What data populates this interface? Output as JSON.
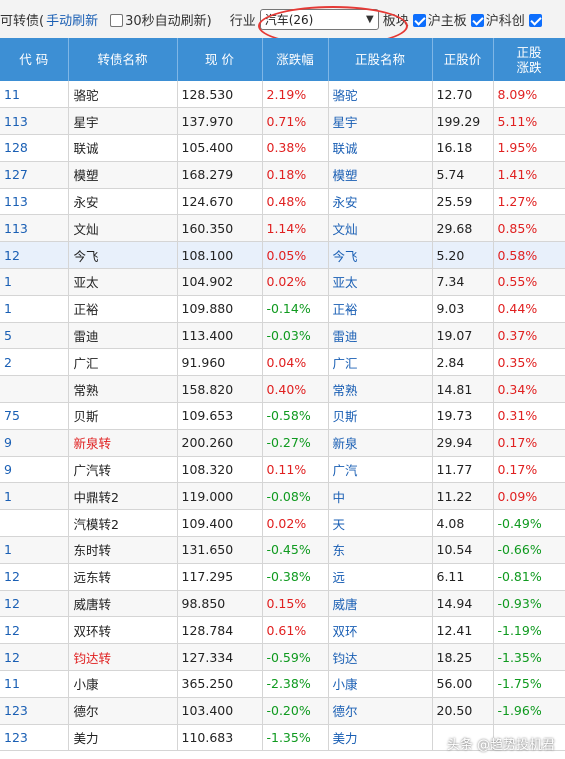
{
  "toolbar": {
    "title": "可转债(",
    "refresh_link": "手动刷新",
    "auto_refresh_label": "30秒自动刷新)",
    "industry_label": "行业",
    "industry_select": "汽车(26)",
    "board_label": "板块",
    "boards": [
      "沪主板",
      "沪科创",
      ""
    ]
  },
  "columns": [
    "代 码",
    "转债名称",
    "现 价",
    "涨跌幅",
    "正股名称",
    "正股价",
    "正股\n涨跌"
  ],
  "rows": [
    {
      "code": "11",
      "name": "骆驼",
      "price": "128.530",
      "chg": "2.19%",
      "stock": "骆驼",
      "sprice": "12.70",
      "schg": "8.09%"
    },
    {
      "code": "113",
      "name": "星宇",
      "price": "137.970",
      "chg": "0.71%",
      "stock": "星宇",
      "sprice": "199.29",
      "schg": "5.11%"
    },
    {
      "code": "128",
      "name": "联诚",
      "price": "105.400",
      "chg": "0.38%",
      "stock": "联诚",
      "sprice": "16.18",
      "schg": "1.95%"
    },
    {
      "code": "127",
      "name": "模塑",
      "price": "168.279",
      "chg": "0.18%",
      "stock": "模塑",
      "sprice": "5.74",
      "schg": "1.41%"
    },
    {
      "code": "113",
      "name": "永安",
      "price": "124.670",
      "chg": "0.48%",
      "stock": "永安",
      "sprice": "25.59",
      "schg": "1.27%"
    },
    {
      "code": "113",
      "name": "文灿",
      "price": "160.350",
      "chg": "1.14%",
      "stock": "文灿",
      "sprice": "29.68",
      "schg": "0.85%"
    },
    {
      "code": "12",
      "name": "今飞",
      "price": "108.100",
      "chg": "0.05%",
      "stock": "今飞",
      "sprice": "5.20",
      "schg": "0.58%"
    },
    {
      "code": "1",
      "name": "亚太",
      "price": "104.902",
      "chg": "0.02%",
      "stock": "亚太",
      "sprice": "7.34",
      "schg": "0.55%"
    },
    {
      "code": "1",
      "name": "正裕",
      "price": "109.880",
      "chg": "-0.14%",
      "stock": "正裕",
      "sprice": "9.03",
      "schg": "0.44%"
    },
    {
      "code": "5",
      "name": "雷迪",
      "price": "113.400",
      "chg": "-0.03%",
      "stock": "雷迪",
      "sprice": "19.07",
      "schg": "0.37%"
    },
    {
      "code": "2",
      "name": "广汇",
      "price": "91.960",
      "chg": "0.04%",
      "stock": "广汇",
      "sprice": "2.84",
      "schg": "0.35%"
    },
    {
      "code": "",
      "name": "常熟",
      "price": "158.820",
      "chg": "0.40%",
      "stock": "常熟",
      "sprice": "14.81",
      "schg": "0.34%"
    },
    {
      "code": "75",
      "name": "贝斯",
      "price": "109.653",
      "chg": "-0.58%",
      "stock": "贝斯",
      "sprice": "19.73",
      "schg": "0.31%"
    },
    {
      "code": "9",
      "name": "新泉转",
      "price": "200.260",
      "chg": "-0.27%",
      "stock": "新泉",
      "sprice": "29.94",
      "schg": "0.17%"
    },
    {
      "code": "9",
      "name": "广汽转",
      "price": "108.320",
      "chg": "0.11%",
      "stock": "广汽",
      "sprice": "11.77",
      "schg": "0.17%"
    },
    {
      "code": "1",
      "name": "中鼎转2",
      "price": "119.000",
      "chg": "-0.08%",
      "stock": "中",
      "sprice": "11.22",
      "schg": "0.09%"
    },
    {
      "code": "",
      "name": "汽模转2",
      "price": "109.400",
      "chg": "0.02%",
      "stock": "天",
      "sprice": "4.08",
      "schg": "-0.49%"
    },
    {
      "code": "1",
      "name": "东时转",
      "price": "131.650",
      "chg": "-0.45%",
      "stock": "东",
      "sprice": "10.54",
      "schg": "-0.66%"
    },
    {
      "code": "12",
      "name": "远东转",
      "price": "117.295",
      "chg": "-0.38%",
      "stock": "远",
      "sprice": "6.11",
      "schg": "-0.81%"
    },
    {
      "code": "12",
      "name": "威唐转",
      "price": "98.850",
      "chg": "0.15%",
      "stock": "威唐",
      "sprice": "14.94",
      "schg": "-0.93%"
    },
    {
      "code": "12",
      "name": "双环转",
      "price": "128.784",
      "chg": "0.61%",
      "stock": "双环",
      "sprice": "12.41",
      "schg": "-1.19%"
    },
    {
      "code": "12",
      "name": "钧达转",
      "price": "127.334",
      "chg": "-0.59%",
      "stock": "钧达",
      "sprice": "18.25",
      "schg": "-1.35%"
    },
    {
      "code": "11",
      "name": "小康",
      "price": "365.250",
      "chg": "-2.38%",
      "stock": "小康",
      "sprice": "56.00",
      "schg": "-1.75%"
    },
    {
      "code": "123",
      "name": "德尔",
      "price": "103.400",
      "chg": "-0.20%",
      "stock": "德尔",
      "sprice": "20.50",
      "schg": "-1.96%"
    },
    {
      "code": "123",
      "name": "美力",
      "price": "110.683",
      "chg": "-1.35%",
      "stock": "美力",
      "sprice": "",
      "schg": ""
    }
  ],
  "watermark": "头条 @趋势投机君",
  "colors": {
    "header_bg": "#3d8fd4",
    "up": "#e02020",
    "down": "#0f9a1f",
    "link": "#1a5fb4",
    "highlight": "#e53935"
  }
}
